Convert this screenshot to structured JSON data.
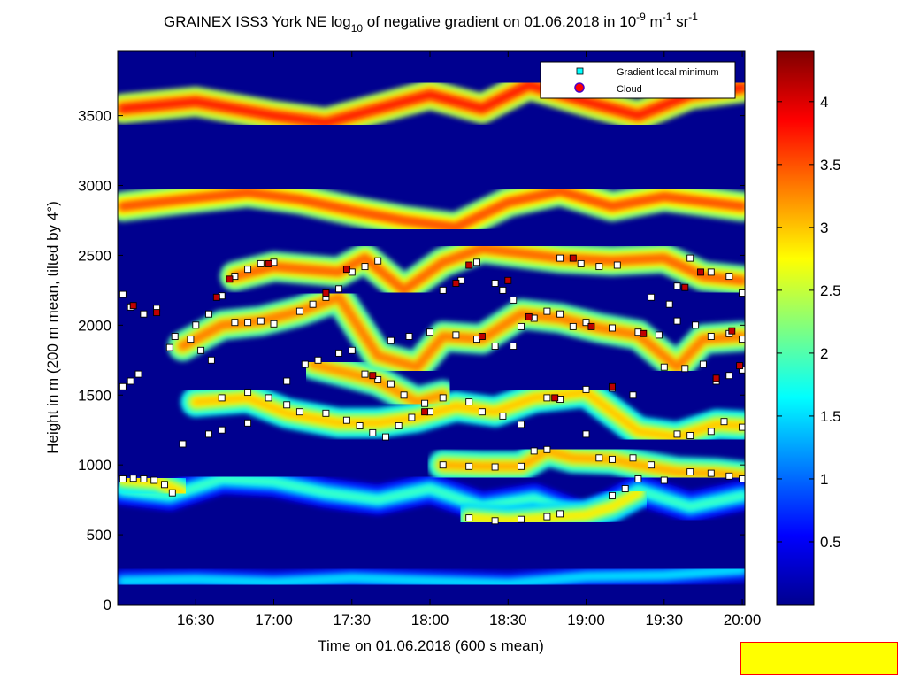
{
  "colors": {
    "background": "#ffffff",
    "plot_base": "#00008f",
    "axis": "#000000",
    "param_border": "#ff0000",
    "param_fill": "#ffff00"
  },
  "chart_data": {
    "type": "heatmap",
    "title": "GRAINEX ISS3 York NE log",
    "title_sub": "10",
    "title_rest": " of negative gradient on 01.06.2018 in 10",
    "title_unit_sup1": "-9",
    "title_unit_mid": " m",
    "title_unit_sup2": "-1",
    "title_unit_end": " sr",
    "title_unit_sup3": "-1",
    "xlabel": "Time on 01.06.2018 (600 s mean)",
    "ylabel": "Height in m (200 m mean, tilted by 4°)",
    "x_ticks": [
      "16:30",
      "17:00",
      "17:30",
      "18:00",
      "18:30",
      "19:00",
      "19:30",
      "20:00"
    ],
    "x_tick_minutes": [
      990,
      1020,
      1050,
      1080,
      1110,
      1140,
      1170,
      1200
    ],
    "xlim_minutes": [
      960,
      1201
    ],
    "y_ticks": [
      "0",
      "500",
      "1000",
      "1500",
      "2000",
      "2500",
      "3000",
      "3500"
    ],
    "y_tick_values": [
      0,
      500,
      1000,
      1500,
      2000,
      2500,
      3000,
      3500
    ],
    "ylim": [
      0,
      3960
    ],
    "colorbar": {
      "ticks": [
        "0.5",
        "1",
        "1.5",
        "2",
        "2.5",
        "3",
        "3.5",
        "4"
      ],
      "tick_values": [
        0.5,
        1,
        1.5,
        2,
        2.5,
        3,
        3.5,
        4
      ],
      "clim": [
        0,
        4.4
      ],
      "colormap": "jet"
    },
    "legend": {
      "placement": "top-right",
      "entries": [
        {
          "label": "Gradient local minimum",
          "marker": "square",
          "color": "#00ffff"
        },
        {
          "label": "Cloud",
          "marker": "circle",
          "color": "#ff0000"
        }
      ]
    },
    "layers": [
      {
        "name": "near-surface",
        "value": 1.3,
        "points": [
          [
            962,
            170
          ],
          [
            990,
            180
          ],
          [
            1020,
            160
          ],
          [
            1050,
            190
          ],
          [
            1080,
            170
          ],
          [
            1110,
            150
          ],
          [
            1140,
            200
          ],
          [
            1170,
            210
          ],
          [
            1200,
            250
          ]
        ]
      },
      {
        "name": "low",
        "value": 1.7,
        "points": [
          [
            962,
            820
          ],
          [
            980,
            780
          ],
          [
            1000,
            900
          ],
          [
            1020,
            880
          ],
          [
            1040,
            800
          ],
          [
            1060,
            750
          ],
          [
            1080,
            830
          ],
          [
            1100,
            700
          ],
          [
            1120,
            760
          ],
          [
            1140,
            620
          ],
          [
            1160,
            820
          ],
          [
            1180,
            700
          ],
          [
            1200,
            780
          ]
        ]
      },
      {
        "name": "layer-900",
        "value": 2.7,
        "points": [
          [
            962,
            900
          ],
          [
            975,
            880
          ],
          [
            985,
            800
          ]
        ]
      },
      {
        "name": "layer-1000",
        "value": 2.9,
        "points": [
          [
            1085,
            1000
          ],
          [
            1100,
            990
          ],
          [
            1115,
            990
          ],
          [
            1125,
            1100
          ],
          [
            1135,
            1050
          ],
          [
            1150,
            1040
          ],
          [
            1160,
            1000
          ],
          [
            1175,
            950
          ],
          [
            1190,
            940
          ],
          [
            1200,
            920
          ]
        ]
      },
      {
        "name": "layer-600",
        "value": 2.6,
        "points": [
          [
            1095,
            620
          ],
          [
            1110,
            600
          ],
          [
            1125,
            620
          ],
          [
            1140,
            640
          ],
          [
            1150,
            700
          ],
          [
            1160,
            800
          ]
        ]
      },
      {
        "name": "layer-1300",
        "value": 2.8,
        "points": [
          [
            990,
            1450
          ],
          [
            1010,
            1480
          ],
          [
            1025,
            1370
          ],
          [
            1045,
            1300
          ],
          [
            1060,
            1300
          ],
          [
            1075,
            1340
          ],
          [
            1090,
            1420
          ],
          [
            1105,
            1380
          ],
          [
            1120,
            1480
          ],
          [
            1140,
            1520
          ],
          [
            1160,
            1240
          ],
          [
            1175,
            1200
          ],
          [
            1190,
            1290
          ],
          [
            1200,
            1280
          ]
        ]
      },
      {
        "name": "layer-1600",
        "value": 3.0,
        "points": [
          [
            1035,
            1720
          ],
          [
            1050,
            1650
          ],
          [
            1060,
            1600
          ],
          [
            1075,
            1450
          ],
          [
            1085,
            1500
          ]
        ]
      },
      {
        "name": "layer-1900",
        "value": 3.1,
        "points": [
          [
            985,
            1850
          ],
          [
            1000,
            2000
          ],
          [
            1015,
            2030
          ],
          [
            1030,
            2100
          ],
          [
            1045,
            2200
          ],
          [
            1060,
            1780
          ],
          [
            1075,
            1700
          ],
          [
            1085,
            1920
          ],
          [
            1100,
            1900
          ],
          [
            1115,
            2080
          ],
          [
            1130,
            2050
          ],
          [
            1145,
            1980
          ],
          [
            1160,
            1930
          ],
          [
            1175,
            1700
          ],
          [
            1185,
            1900
          ],
          [
            1200,
            1920
          ]
        ]
      },
      {
        "name": "layer-2400",
        "value": 3.2,
        "points": [
          [
            1005,
            2350
          ],
          [
            1020,
            2420
          ],
          [
            1045,
            2380
          ],
          [
            1055,
            2480
          ],
          [
            1070,
            2250
          ],
          [
            1085,
            2450
          ],
          [
            1100,
            2550
          ],
          [
            1130,
            2480
          ],
          [
            1150,
            2460
          ],
          [
            1170,
            2480
          ],
          [
            1185,
            2350
          ],
          [
            1200,
            2320
          ]
        ]
      },
      {
        "name": "upper-1",
        "value": 3.3,
        "points": [
          [
            962,
            2850
          ],
          [
            985,
            2900
          ],
          [
            1010,
            2950
          ],
          [
            1030,
            2900
          ],
          [
            1050,
            2820
          ],
          [
            1070,
            2750
          ],
          [
            1090,
            2700
          ],
          [
            1110,
            2880
          ],
          [
            1130,
            2960
          ],
          [
            1150,
            2850
          ],
          [
            1170,
            2920
          ],
          [
            1200,
            2850
          ]
        ]
      },
      {
        "name": "upper-2",
        "value": 3.5,
        "points": [
          [
            962,
            3550
          ],
          [
            990,
            3600
          ],
          [
            1020,
            3500
          ],
          [
            1040,
            3450
          ],
          [
            1060,
            3550
          ],
          [
            1080,
            3650
          ],
          [
            1100,
            3550
          ],
          [
            1118,
            3720
          ],
          [
            1140,
            3600
          ],
          [
            1160,
            3500
          ],
          [
            1180,
            3650
          ],
          [
            1200,
            3700
          ]
        ]
      }
    ],
    "local_minima": [
      [
        962,
        900
      ],
      [
        966,
        905
      ],
      [
        970,
        900
      ],
      [
        974,
        890
      ],
      [
        978,
        860
      ],
      [
        981,
        800
      ],
      [
        985,
        1150
      ],
      [
        995,
        1220
      ],
      [
        1000,
        1250
      ],
      [
        1010,
        1300
      ],
      [
        962,
        1560
      ],
      [
        965,
        1600
      ],
      [
        968,
        1650
      ],
      [
        980,
        1840
      ],
      [
        988,
        1900
      ],
      [
        992,
        1820
      ],
      [
        996,
        1750
      ],
      [
        962,
        2220
      ],
      [
        965,
        2130
      ],
      [
        970,
        2080
      ],
      [
        975,
        2120
      ],
      [
        982,
        1920
      ],
      [
        990,
        2000
      ],
      [
        995,
        2080
      ],
      [
        1000,
        2210
      ],
      [
        1005,
        2350
      ],
      [
        1010,
        2400
      ],
      [
        1015,
        2440
      ],
      [
        1020,
        2450
      ],
      [
        1005,
        2020
      ],
      [
        1010,
        2020
      ],
      [
        1015,
        2030
      ],
      [
        1020,
        2010
      ],
      [
        1000,
        1480
      ],
      [
        1010,
        1520
      ],
      [
        1018,
        1480
      ],
      [
        1025,
        1430
      ],
      [
        1030,
        1380
      ],
      [
        1040,
        1370
      ],
      [
        1048,
        1320
      ],
      [
        1053,
        1280
      ],
      [
        1058,
        1230
      ],
      [
        1063,
        1200
      ],
      [
        1068,
        1280
      ],
      [
        1073,
        1340
      ],
      [
        1080,
        1380
      ],
      [
        1025,
        1600
      ],
      [
        1032,
        1720
      ],
      [
        1037,
        1750
      ],
      [
        1045,
        1800
      ],
      [
        1050,
        1820
      ],
      [
        1030,
        2100
      ],
      [
        1035,
        2150
      ],
      [
        1040,
        2200
      ],
      [
        1045,
        2260
      ],
      [
        1050,
        2380
      ],
      [
        1055,
        2420
      ],
      [
        1060,
        2460
      ],
      [
        1055,
        1650
      ],
      [
        1060,
        1610
      ],
      [
        1065,
        1580
      ],
      [
        1070,
        1500
      ],
      [
        1078,
        1440
      ],
      [
        1085,
        1480
      ],
      [
        1095,
        1450
      ],
      [
        1100,
        1380
      ],
      [
        1108,
        1350
      ],
      [
        1115,
        1290
      ],
      [
        1065,
        1890
      ],
      [
        1072,
        1920
      ],
      [
        1080,
        1950
      ],
      [
        1090,
        1930
      ],
      [
        1098,
        1900
      ],
      [
        1105,
        1850
      ],
      [
        1112,
        1850
      ],
      [
        1085,
        2250
      ],
      [
        1092,
        2320
      ],
      [
        1098,
        2450
      ],
      [
        1085,
        1000
      ],
      [
        1095,
        990
      ],
      [
        1105,
        985
      ],
      [
        1115,
        990
      ],
      [
        1120,
        1100
      ],
      [
        1125,
        1110
      ],
      [
        1095,
        620
      ],
      [
        1105,
        600
      ],
      [
        1115,
        610
      ],
      [
        1125,
        630
      ],
      [
        1130,
        650
      ],
      [
        1105,
        2300
      ],
      [
        1108,
        2250
      ],
      [
        1112,
        2180
      ],
      [
        1115,
        1990
      ],
      [
        1120,
        2050
      ],
      [
        1125,
        2100
      ],
      [
        1130,
        2080
      ],
      [
        1135,
        1990
      ],
      [
        1125,
        1480
      ],
      [
        1130,
        1470
      ],
      [
        1140,
        1540
      ],
      [
        1150,
        1550
      ],
      [
        1158,
        1500
      ],
      [
        1130,
        2480
      ],
      [
        1138,
        2440
      ],
      [
        1145,
        2420
      ],
      [
        1152,
        2430
      ],
      [
        1140,
        2020
      ],
      [
        1150,
        1980
      ],
      [
        1160,
        1950
      ],
      [
        1168,
        1930
      ],
      [
        1140,
        1220
      ],
      [
        1145,
        1050
      ],
      [
        1150,
        1040
      ],
      [
        1158,
        1050
      ],
      [
        1165,
        1000
      ],
      [
        1170,
        890
      ],
      [
        1150,
        780
      ],
      [
        1155,
        830
      ],
      [
        1160,
        900
      ],
      [
        1165,
        2200
      ],
      [
        1172,
        2150
      ],
      [
        1175,
        2280
      ],
      [
        1180,
        2480
      ],
      [
        1188,
        2380
      ],
      [
        1195,
        2350
      ],
      [
        1200,
        2230
      ],
      [
        1170,
        1700
      ],
      [
        1178,
        1690
      ],
      [
        1185,
        1720
      ],
      [
        1190,
        1600
      ],
      [
        1195,
        1640
      ],
      [
        1200,
        1680
      ],
      [
        1175,
        2030
      ],
      [
        1182,
        2000
      ],
      [
        1188,
        1920
      ],
      [
        1195,
        1940
      ],
      [
        1200,
        1900
      ],
      [
        1175,
        1220
      ],
      [
        1180,
        1210
      ],
      [
        1188,
        1240
      ],
      [
        1193,
        1310
      ],
      [
        1200,
        1270
      ],
      [
        1180,
        950
      ],
      [
        1188,
        940
      ],
      [
        1195,
        920
      ],
      [
        1200,
        900
      ]
    ],
    "cloud_points": [
      [
        966,
        2140
      ],
      [
        975,
        2090
      ],
      [
        998,
        2200
      ],
      [
        1003,
        2330
      ],
      [
        1018,
        2440
      ],
      [
        1040,
        2230
      ],
      [
        1048,
        2400
      ],
      [
        1058,
        1640
      ],
      [
        1078,
        1380
      ],
      [
        1090,
        2300
      ],
      [
        1095,
        2430
      ],
      [
        1100,
        1920
      ],
      [
        1110,
        2320
      ],
      [
        1118,
        2060
      ],
      [
        1128,
        1480
      ],
      [
        1135,
        2480
      ],
      [
        1142,
        1990
      ],
      [
        1150,
        1560
      ],
      [
        1162,
        1940
      ],
      [
        1178,
        2270
      ],
      [
        1184,
        2380
      ],
      [
        1190,
        1620
      ],
      [
        1196,
        1960
      ],
      [
        1199,
        1710
      ]
    ]
  }
}
